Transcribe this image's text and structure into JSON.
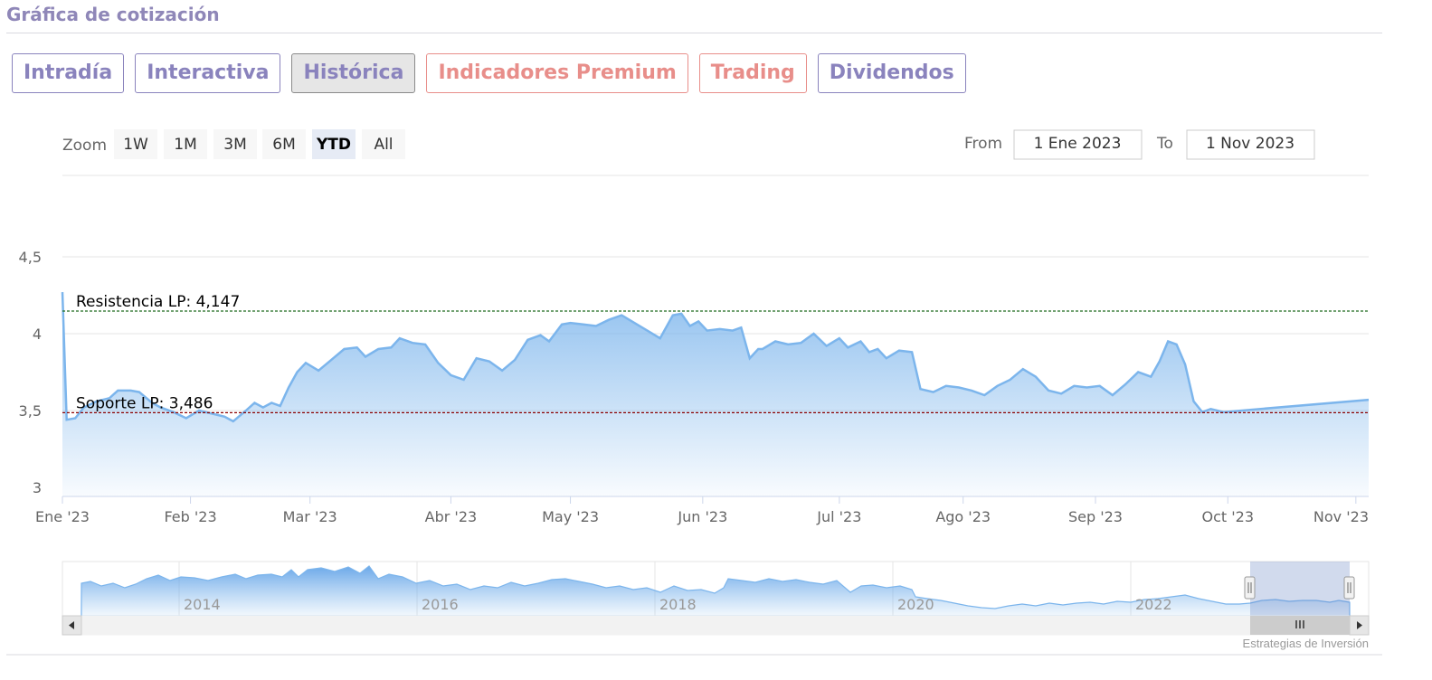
{
  "section": {
    "title": "Gráfica de cotización"
  },
  "tabs": [
    {
      "label": "Intradía",
      "style": "purple",
      "active": false
    },
    {
      "label": "Interactiva",
      "style": "purple",
      "active": false
    },
    {
      "label": "Histórica",
      "style": "purple",
      "active": true
    },
    {
      "label": "Indicadores Premium",
      "style": "coral",
      "active": false
    },
    {
      "label": "Trading",
      "style": "coral",
      "active": false
    },
    {
      "label": "Dividendos",
      "style": "purple",
      "active": false
    }
  ],
  "range_selector": {
    "zoom_label": "Zoom",
    "buttons": [
      "1W",
      "1M",
      "3M",
      "6M",
      "YTD",
      "All"
    ],
    "selected": "YTD",
    "from_label": "From",
    "from_value": "1 Ene 2023",
    "to_label": "To",
    "to_value": "1 Nov 2023"
  },
  "credits": "Estrategias de Inversión",
  "colors": {
    "line": "#7cb5ec",
    "resistance": "#1e6b1e",
    "support": "#8b0000"
  },
  "chart_data": {
    "type": "area",
    "title": "",
    "xlabel": "",
    "ylabel": "",
    "ylim": [
      2.95,
      4.5
    ],
    "yticks": [
      3,
      3.5,
      4,
      4.5
    ],
    "ytick_labels": [
      "3",
      "3,5",
      "4",
      "4,5"
    ],
    "xlim": [
      "2023-01-02",
      "2023-11-04"
    ],
    "xticks": [
      {
        "date": "2023-01-02",
        "label": "Ene '23"
      },
      {
        "date": "2023-02-01",
        "label": "Feb '23"
      },
      {
        "date": "2023-03-01",
        "label": "Mar '23"
      },
      {
        "date": "2023-04-03",
        "label": "Abr '23"
      },
      {
        "date": "2023-05-01",
        "label": "May '23"
      },
      {
        "date": "2023-06-01",
        "label": "Jun '23"
      },
      {
        "date": "2023-07-03",
        "label": "Jul '23"
      },
      {
        "date": "2023-08-01",
        "label": "Ago '23"
      },
      {
        "date": "2023-09-01",
        "label": "Sep '23"
      },
      {
        "date": "2023-10-02",
        "label": "Oct '23"
      },
      {
        "date": "2023-11-01",
        "label": "Nov '23"
      }
    ],
    "plot_lines": [
      {
        "label": "Resistencia LP: 4,147",
        "value": 4.147,
        "style": "resistance"
      },
      {
        "label": "Soporte LP: 3,486",
        "value": 3.486,
        "style": "support"
      }
    ],
    "grid": true,
    "legend": "none",
    "series": [
      {
        "points": [
          [
            "2023-01-02",
            4.27
          ],
          [
            "2023-01-03",
            3.44
          ],
          [
            "2023-01-05",
            3.45
          ],
          [
            "2023-01-07",
            3.52
          ],
          [
            "2023-01-10",
            3.56
          ],
          [
            "2023-01-13",
            3.58
          ],
          [
            "2023-01-15",
            3.63
          ],
          [
            "2023-01-18",
            3.63
          ],
          [
            "2023-01-20",
            3.62
          ],
          [
            "2023-01-23",
            3.55
          ],
          [
            "2023-01-25",
            3.52
          ],
          [
            "2023-01-28",
            3.49
          ],
          [
            "2023-01-31",
            3.45
          ],
          [
            "2023-02-03",
            3.5
          ],
          [
            "2023-02-06",
            3.48
          ],
          [
            "2023-02-09",
            3.46
          ],
          [
            "2023-02-11",
            3.43
          ],
          [
            "2023-02-14",
            3.5
          ],
          [
            "2023-02-16",
            3.55
          ],
          [
            "2023-02-18",
            3.52
          ],
          [
            "2023-02-20",
            3.55
          ],
          [
            "2023-02-22",
            3.53
          ],
          [
            "2023-02-24",
            3.65
          ],
          [
            "2023-02-26",
            3.75
          ],
          [
            "2023-02-28",
            3.81
          ],
          [
            "2023-03-03",
            3.76
          ],
          [
            "2023-03-06",
            3.83
          ],
          [
            "2023-03-09",
            3.9
          ],
          [
            "2023-03-12",
            3.91
          ],
          [
            "2023-03-14",
            3.85
          ],
          [
            "2023-03-17",
            3.9
          ],
          [
            "2023-03-20",
            3.91
          ],
          [
            "2023-03-22",
            3.97
          ],
          [
            "2023-03-25",
            3.94
          ],
          [
            "2023-03-28",
            3.93
          ],
          [
            "2023-03-31",
            3.81
          ],
          [
            "2023-04-03",
            3.73
          ],
          [
            "2023-04-06",
            3.7
          ],
          [
            "2023-04-09",
            3.84
          ],
          [
            "2023-04-12",
            3.82
          ],
          [
            "2023-04-15",
            3.76
          ],
          [
            "2023-04-18",
            3.83
          ],
          [
            "2023-04-21",
            3.96
          ],
          [
            "2023-04-24",
            3.99
          ],
          [
            "2023-04-26",
            3.95
          ],
          [
            "2023-04-29",
            4.06
          ],
          [
            "2023-05-01",
            4.07
          ],
          [
            "2023-05-04",
            4.06
          ],
          [
            "2023-05-07",
            4.05
          ],
          [
            "2023-05-10",
            4.09
          ],
          [
            "2023-05-13",
            4.12
          ],
          [
            "2023-05-16",
            4.07
          ],
          [
            "2023-05-19",
            4.02
          ],
          [
            "2023-05-22",
            3.97
          ],
          [
            "2023-05-25",
            4.12
          ],
          [
            "2023-05-27",
            4.13
          ],
          [
            "2023-05-29",
            4.05
          ],
          [
            "2023-05-31",
            4.08
          ],
          [
            "2023-06-02",
            4.02
          ],
          [
            "2023-06-05",
            4.03
          ],
          [
            "2023-06-08",
            4.02
          ],
          [
            "2023-06-10",
            4.04
          ],
          [
            "2023-06-12",
            3.84
          ],
          [
            "2023-06-15",
            3.9
          ],
          [
            "2023-06-18",
            3.95
          ],
          [
            "2023-06-21",
            3.93
          ],
          [
            "2023-06-24",
            3.94
          ],
          [
            "2023-06-27",
            4.0
          ],
          [
            "2023-06-30",
            3.92
          ],
          [
            "2023-07-03",
            3.97
          ],
          [
            "2023-07-05",
            3.91
          ],
          [
            "2023-07-08",
            3.95
          ],
          [
            "2023-07-10",
            3.88
          ],
          [
            "2023-07-12",
            3.9
          ],
          [
            "2023-07-14",
            3.84
          ],
          [
            "2023-07-17",
            3.89
          ],
          [
            "2023-07-20",
            3.88
          ],
          [
            "2023-06-14",
            3.9
          ],
          [
            "2023-07-22",
            3.64
          ],
          [
            "2023-07-25",
            3.62
          ],
          [
            "2023-07-28",
            3.66
          ],
          [
            "2023-07-31",
            3.65
          ],
          [
            "2023-08-03",
            3.63
          ],
          [
            "2023-08-06",
            3.6
          ],
          [
            "2023-08-09",
            3.66
          ],
          [
            "2023-08-12",
            3.7
          ],
          [
            "2023-08-15",
            3.77
          ],
          [
            "2023-08-18",
            3.72
          ],
          [
            "2023-08-21",
            3.63
          ],
          [
            "2023-08-24",
            3.61
          ],
          [
            "2023-08-27",
            3.66
          ],
          [
            "2023-08-30",
            3.65
          ],
          [
            "2023-09-02",
            3.66
          ],
          [
            "2023-09-05",
            3.6
          ],
          [
            "2023-09-08",
            3.67
          ],
          [
            "2023-09-11",
            3.75
          ],
          [
            "2023-09-14",
            3.72
          ],
          [
            "2023-09-16",
            3.82
          ],
          [
            "2023-09-18",
            3.95
          ],
          [
            "2023-09-20",
            3.93
          ],
          [
            "2023-09-22",
            3.8
          ],
          [
            "2023-09-24",
            3.56
          ],
          [
            "2023-09-26",
            3.49
          ],
          [
            "2023-09-28",
            3.51
          ],
          [
            "2023-10-01",
            3.49
          ]
        ]
      }
    ]
  }
}
